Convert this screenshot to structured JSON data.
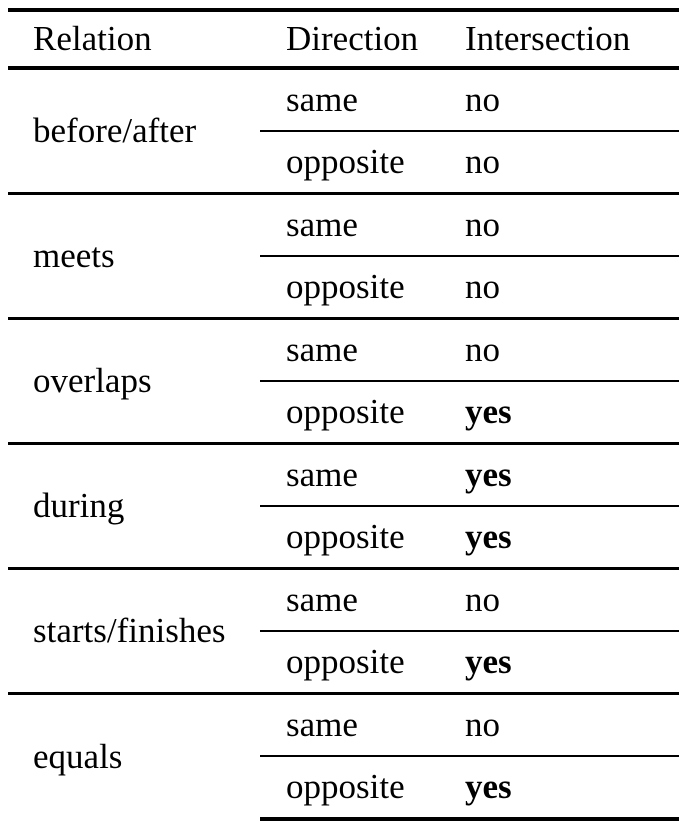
{
  "table": {
    "headers": {
      "relation": "Relation",
      "direction": "Direction",
      "intersection": "Intersection"
    },
    "groups": [
      {
        "relation": "before/after",
        "rows": [
          {
            "direction": "same",
            "intersection": "no"
          },
          {
            "direction": "opposite",
            "intersection": "no"
          }
        ]
      },
      {
        "relation": "meets",
        "rows": [
          {
            "direction": "same",
            "intersection": "no"
          },
          {
            "direction": "opposite",
            "intersection": "no"
          }
        ]
      },
      {
        "relation": "overlaps",
        "rows": [
          {
            "direction": "same",
            "intersection": "no"
          },
          {
            "direction": "opposite",
            "intersection": "yes"
          }
        ]
      },
      {
        "relation": "during",
        "rows": [
          {
            "direction": "same",
            "intersection": "yes"
          },
          {
            "direction": "opposite",
            "intersection": "yes"
          }
        ]
      },
      {
        "relation": "starts/finishes",
        "rows": [
          {
            "direction": "same",
            "intersection": "no"
          },
          {
            "direction": "opposite",
            "intersection": "yes"
          }
        ]
      },
      {
        "relation": "equals",
        "rows": [
          {
            "direction": "same",
            "intersection": "no"
          },
          {
            "direction": "opposite",
            "intersection": "yes"
          }
        ]
      }
    ]
  }
}
